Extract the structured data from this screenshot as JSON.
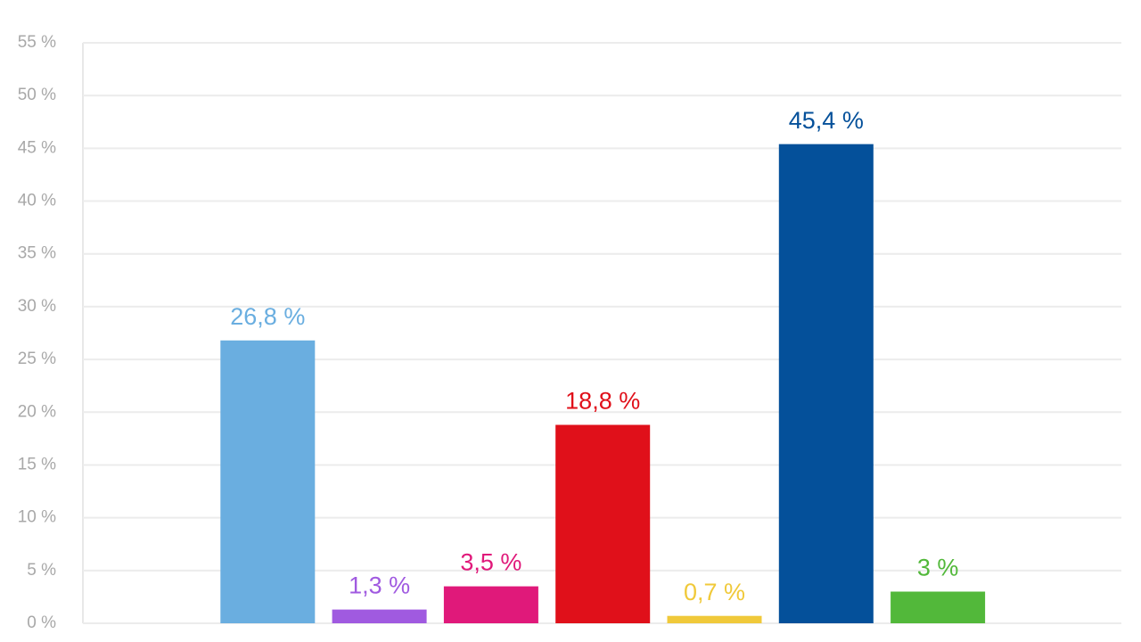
{
  "chart_data": {
    "type": "bar",
    "categories": [
      null,
      null,
      null,
      null,
      null,
      null,
      null
    ],
    "values": [
      26.8,
      1.3,
      3.5,
      18.8,
      0.7,
      45.4,
      3
    ],
    "value_labels": [
      "26,8 %",
      "1,3 %",
      "3,5 %",
      "18,8 %",
      "0,7 %",
      "45,4 %",
      "3 %"
    ],
    "colors": [
      "#6aaee0",
      "#a05ae0",
      "#e0197a",
      "#e0101a",
      "#f0c93a",
      "#04509a",
      "#52b83a"
    ],
    "ylim": [
      0,
      55
    ],
    "yticks": [
      {
        "value": 0,
        "label": "0 %"
      },
      {
        "value": 5,
        "label": "5 %"
      },
      {
        "value": 10,
        "label": "10 %"
      },
      {
        "value": 15,
        "label": "15 %"
      },
      {
        "value": 20,
        "label": "20 %"
      },
      {
        "value": 25,
        "label": "25 %"
      },
      {
        "value": 30,
        "label": "30 %"
      },
      {
        "value": 35,
        "label": "35 %"
      },
      {
        "value": 40,
        "label": "40 %"
      },
      {
        "value": 45,
        "label": "45 %"
      },
      {
        "value": 50,
        "label": "50 %"
      },
      {
        "value": 55,
        "label": "55 %"
      }
    ],
    "grid": true
  }
}
